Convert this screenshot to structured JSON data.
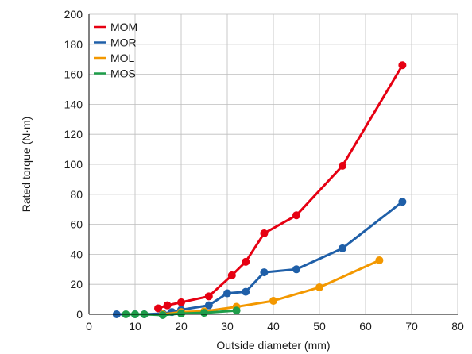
{
  "chart_data": {
    "type": "line",
    "title": "",
    "xlabel": "Outside diameter (mm)",
    "ylabel": "Rated torque (N·m)",
    "xlim": [
      0,
      80
    ],
    "ylim": [
      0,
      200
    ],
    "xticks": [
      0,
      10,
      20,
      30,
      40,
      50,
      60,
      70,
      80
    ],
    "yticks": [
      0,
      20,
      40,
      60,
      80,
      100,
      120,
      140,
      160,
      180,
      200
    ],
    "grid": true,
    "legend_position": "top-left",
    "series": [
      {
        "name": "MOM",
        "color": "#e60012",
        "points": [
          [
            15,
            4
          ],
          [
            17,
            6
          ],
          [
            20,
            8
          ],
          [
            26,
            12
          ],
          [
            31,
            26
          ],
          [
            34,
            35
          ],
          [
            38,
            54
          ],
          [
            45,
            66
          ],
          [
            55,
            99
          ],
          [
            68,
            166
          ]
        ]
      },
      {
        "name": "MOR",
        "color": "#1f5fa8",
        "points": [
          [
            6,
            0
          ],
          [
            10,
            0
          ],
          [
            12,
            0
          ],
          [
            16,
            0.5
          ],
          [
            18,
            1.5
          ],
          [
            20,
            3
          ],
          [
            26,
            6
          ],
          [
            30,
            14
          ],
          [
            34,
            15
          ],
          [
            38,
            28
          ],
          [
            45,
            30
          ],
          [
            55,
            44
          ],
          [
            68,
            75
          ]
        ]
      },
      {
        "name": "MOL",
        "color": "#f39800",
        "points": [
          [
            16,
            0
          ],
          [
            20,
            1.5
          ],
          [
            25,
            2
          ],
          [
            32,
            5
          ],
          [
            40,
            9
          ],
          [
            50,
            18
          ],
          [
            63,
            36
          ]
        ]
      },
      {
        "name": "MOS",
        "color": "#1e9e4a",
        "points": [
          [
            8,
            0
          ],
          [
            10,
            0
          ],
          [
            12,
            0
          ],
          [
            16,
            -0.5
          ],
          [
            20,
            0.5
          ],
          [
            25,
            1
          ],
          [
            32,
            2.5
          ]
        ]
      }
    ]
  }
}
